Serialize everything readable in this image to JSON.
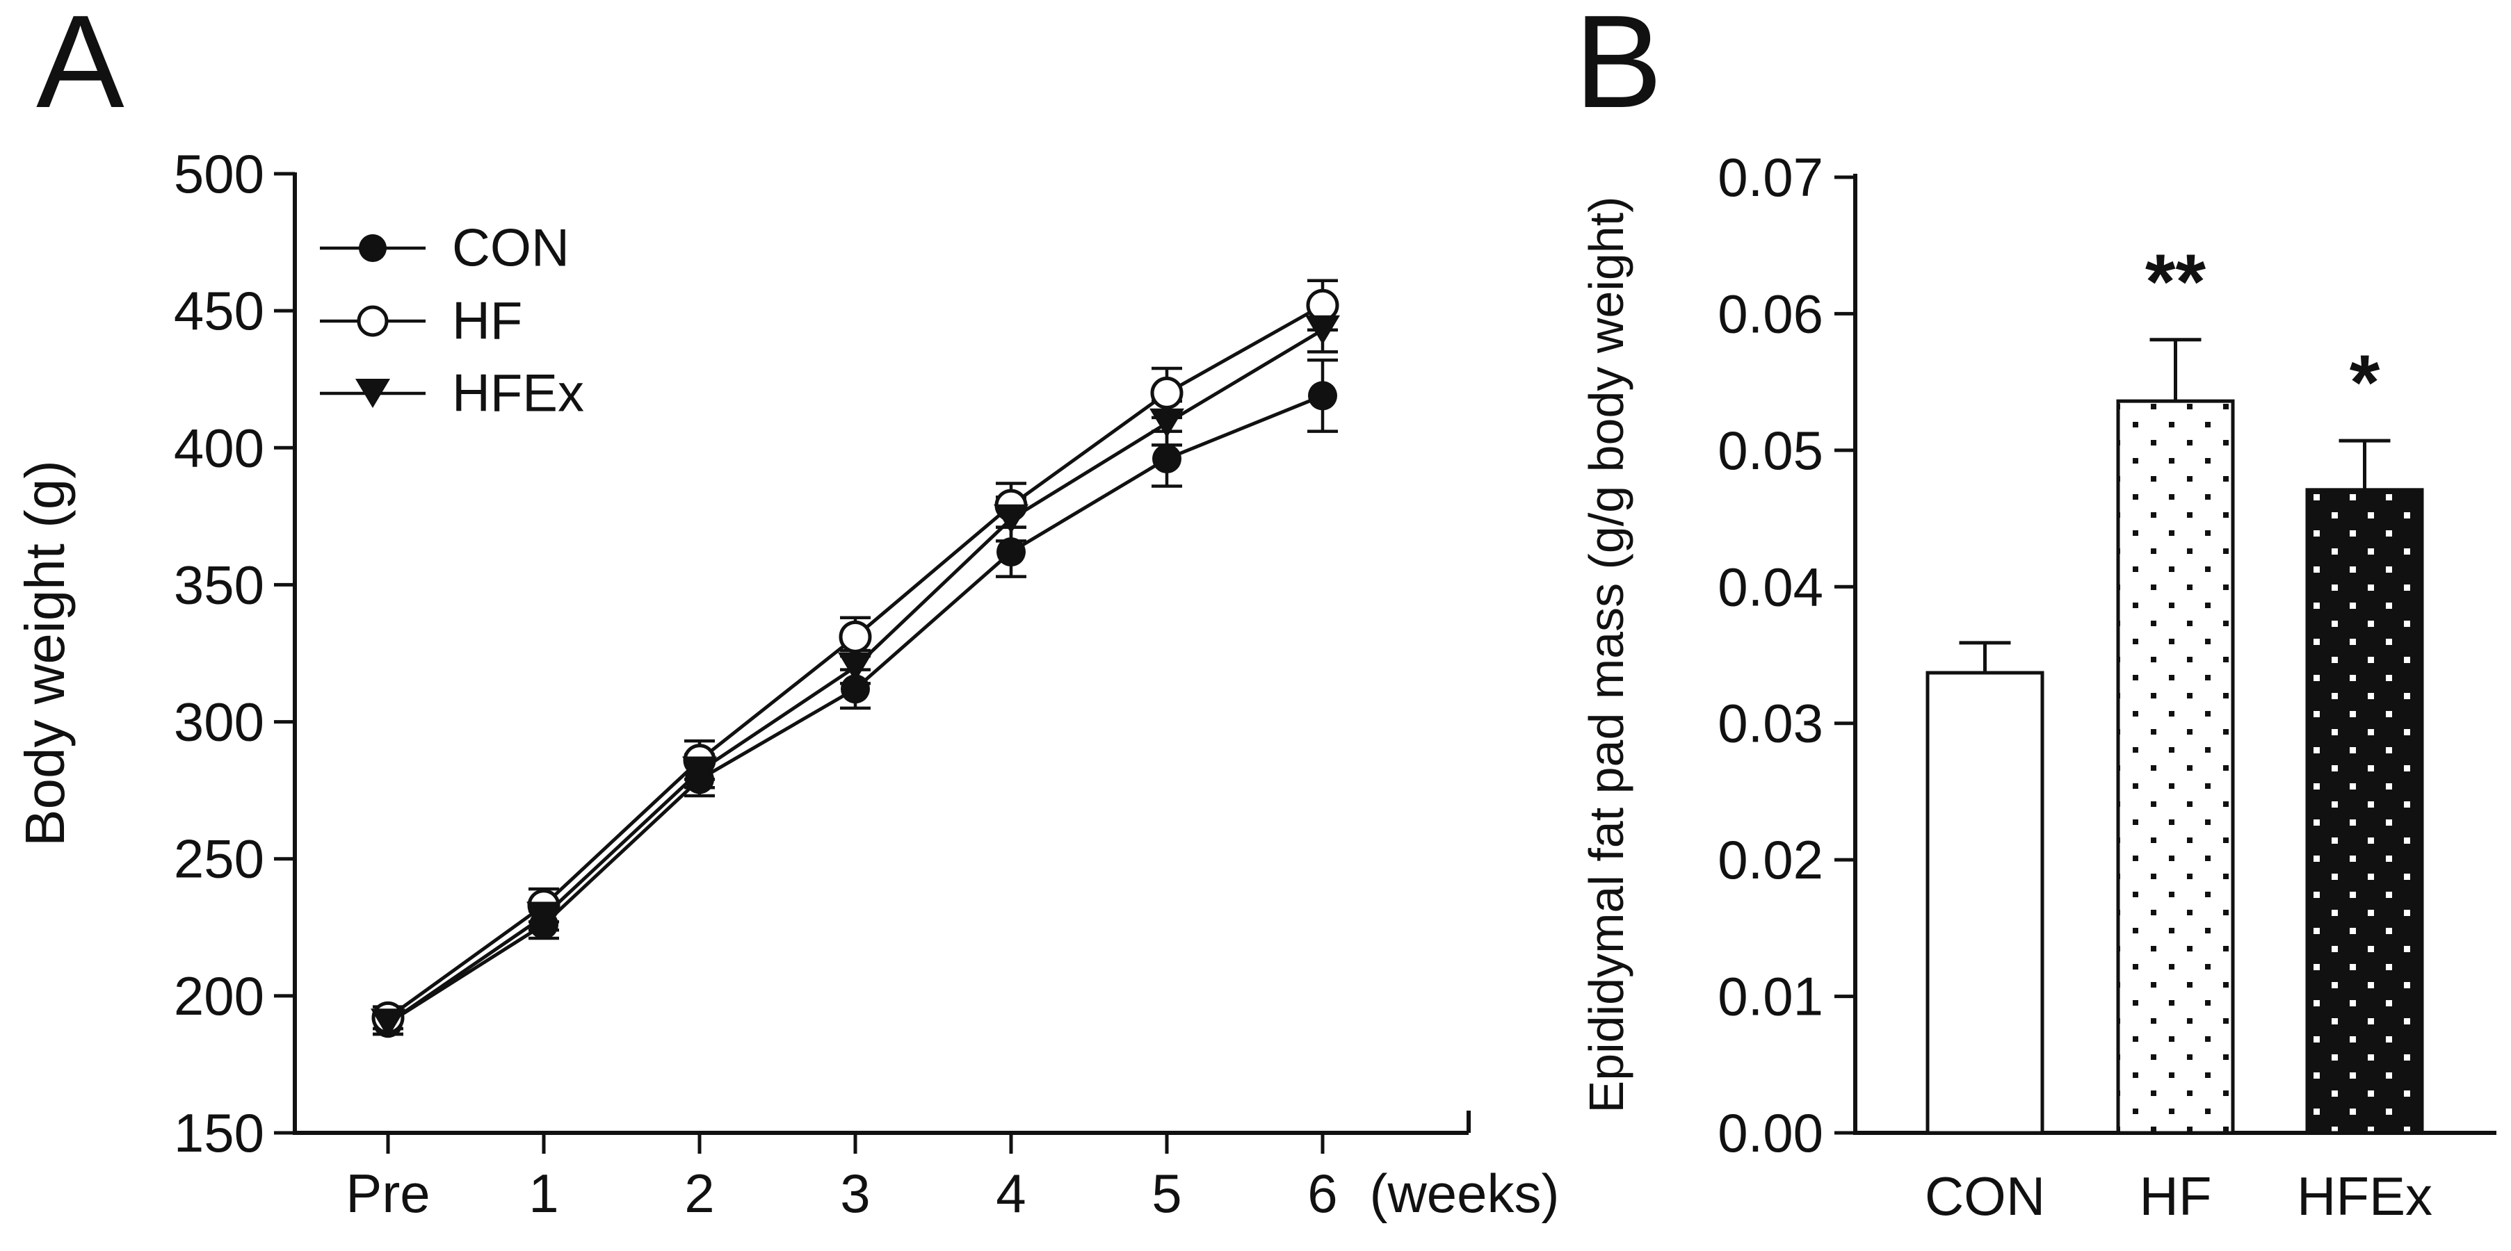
{
  "figure": {
    "background": "#ffffff",
    "ink_color": "#111111",
    "panels": [
      {
        "label": "A",
        "description": "Body weight over time line chart"
      },
      {
        "label": "B",
        "description": "Epididymal fat pad mass bar chart"
      }
    ]
  },
  "chart_data": [
    {
      "type": "line",
      "panel": "A",
      "title": "",
      "xlabel": "",
      "x_unit_label": "(weeks)",
      "ylabel": "Body weight (g)",
      "categories": [
        "Pre",
        "1",
        "2",
        "3",
        "4",
        "5",
        "6"
      ],
      "ylim": [
        150,
        500
      ],
      "yticks": [
        500,
        450,
        400,
        350,
        300,
        250,
        200,
        150
      ],
      "grid": false,
      "legend_position": "top-left-inside",
      "series": [
        {
          "name": "CON",
          "marker": "filled-circle",
          "values": [
            190,
            226,
            279,
            312,
            362,
            396,
            419
          ],
          "errors": [
            4,
            5,
            6,
            7,
            9,
            10,
            13
          ]
        },
        {
          "name": "HF",
          "marker": "open-circle",
          "values": [
            192,
            233,
            286,
            331,
            379,
            420,
            452
          ],
          "errors": [
            4,
            6,
            7,
            7,
            8,
            9,
            9
          ]
        },
        {
          "name": "HFEx",
          "marker": "filled-triangle-down",
          "values": [
            190,
            229,
            282,
            320,
            374,
            409,
            443
          ],
          "errors": [
            4,
            5,
            6,
            6,
            8,
            8,
            8
          ]
        }
      ]
    },
    {
      "type": "bar",
      "panel": "B",
      "title": "",
      "xlabel": "",
      "ylabel": "Epididymal fat pad mass (g/g body weight)",
      "categories": [
        "CON",
        "HF",
        "HFEx"
      ],
      "ylim": [
        0,
        0.07
      ],
      "yticks": [
        "0.07",
        "0.06",
        "0.05",
        "0.04",
        "0.03",
        "0.02",
        "0.01",
        "0.00"
      ],
      "grid": false,
      "values": [
        0.0337,
        0.0536,
        0.0471
      ],
      "errors": [
        0.0022,
        0.0045,
        0.0036
      ],
      "bar_styles": [
        "open-white",
        "black-dots-on-white",
        "white-dots-on-black"
      ],
      "annotations": [
        "",
        "**",
        "*"
      ]
    }
  ]
}
